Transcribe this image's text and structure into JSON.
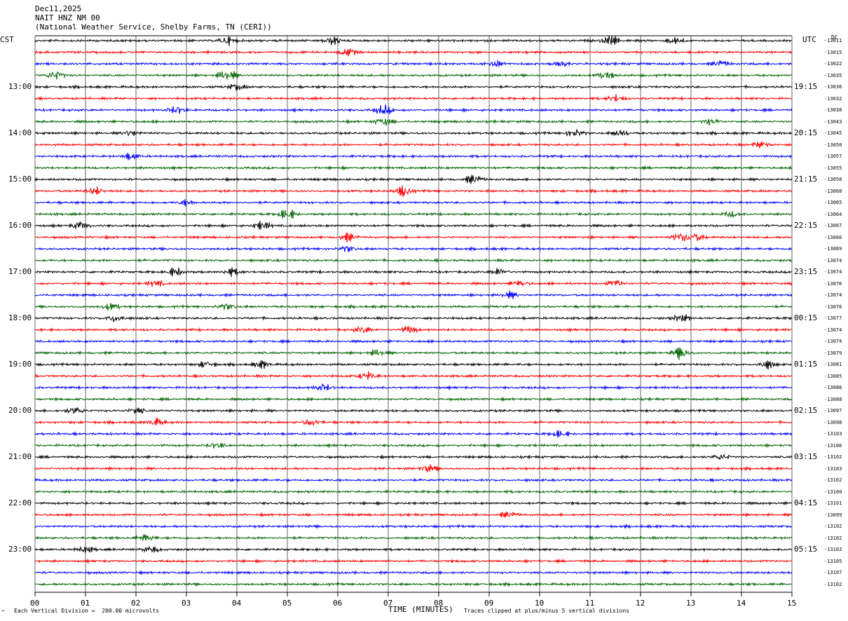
{
  "header": {
    "date": "Dec11,2025",
    "station": "NAIT HNZ NM 00",
    "source": "(National Weather Service, Shelby Farms, TN (CERI))"
  },
  "left_axis_title": "CST",
  "right_axis_title": "UTC",
  "right_column_label": "DC",
  "footer": {
    "marker": "^",
    "scale": "Each Vertical Division =  200.00 microvolts",
    "clip": "Traces clipped at plus/minus 5 vertical divisions"
  },
  "chart_data": {
    "type": "line",
    "title": "",
    "xlabel": "TIME (MINUTES)",
    "ylabel": "",
    "xlim": [
      0,
      15
    ],
    "x_ticks": [
      "00",
      "01",
      "02",
      "03",
      "04",
      "05",
      "06",
      "07",
      "08",
      "09",
      "10",
      "11",
      "12",
      "13",
      "14",
      "15"
    ],
    "grid": "vertical",
    "row_minutes": 15,
    "series_colors": [
      "#000000",
      "#ff0000",
      "#0000ff",
      "#006400"
    ],
    "rows_per_hour": 4,
    "row_count": 48,
    "cst_hour_labels": [
      "13:00",
      "14:00",
      "15:00",
      "16:00",
      "17:00",
      "18:00",
      "19:00",
      "20:00",
      "21:00",
      "22:00",
      "23:00"
    ],
    "utc_hour_labels": [
      "19:15",
      "20:15",
      "21:15",
      "22:15",
      "23:15",
      "00:15",
      "01:15",
      "02:15",
      "03:15",
      "04:15",
      "05:15"
    ],
    "first_labeled_row": 4,
    "row_means": [
      "-13011",
      "-13015",
      "-13022",
      "-13035",
      "-13036",
      "-13032",
      "-13038",
      "-13043",
      "-13045",
      "-13050",
      "-13057",
      "-13055",
      "-13058",
      "-13068",
      "-13065",
      "-13064",
      "-13067",
      "-13066",
      "-13069",
      "-13074",
      "-13074",
      "-13076",
      "-13074",
      "-13076",
      "-13077",
      "-13074",
      "-13074",
      "-13079",
      "-13081",
      "-13085",
      "-13086",
      "-13088",
      "-13097",
      "-13098",
      "-13103",
      "-13106",
      "-13102",
      "-13103",
      "-13102",
      "-13100",
      "-13101",
      "-13099",
      "-13102",
      "-13102",
      "-13103",
      "-13105",
      "-13107",
      "-13102"
    ],
    "events": [
      {
        "row": 0,
        "minute": 3.8,
        "amp": 1.6
      },
      {
        "row": 0,
        "minute": 5.9,
        "amp": 1.8
      },
      {
        "row": 0,
        "minute": 11.4,
        "amp": 1.8
      },
      {
        "row": 0,
        "minute": 12.7,
        "amp": 1.4
      },
      {
        "row": 1,
        "minute": 6.2,
        "amp": 1.5
      },
      {
        "row": 2,
        "minute": 9.1,
        "amp": 1.6
      },
      {
        "row": 2,
        "minute": 10.4,
        "amp": 1.3
      },
      {
        "row": 2,
        "minute": 13.6,
        "amp": 1.3
      },
      {
        "row": 3,
        "minute": 0.4,
        "amp": 2.0
      },
      {
        "row": 3,
        "minute": 3.8,
        "amp": 2.4
      },
      {
        "row": 3,
        "minute": 11.3,
        "amp": 1.4
      },
      {
        "row": 4,
        "minute": 4.0,
        "amp": 1.2
      },
      {
        "row": 5,
        "minute": 11.5,
        "amp": 1.4
      },
      {
        "row": 6,
        "minute": 2.8,
        "amp": 1.6
      },
      {
        "row": 6,
        "minute": 6.9,
        "amp": 2.0
      },
      {
        "row": 7,
        "minute": 6.9,
        "amp": 1.5
      },
      {
        "row": 7,
        "minute": 13.4,
        "amp": 1.2
      },
      {
        "row": 8,
        "minute": 1.9,
        "amp": 1.3
      },
      {
        "row": 8,
        "minute": 10.7,
        "amp": 1.6
      },
      {
        "row": 8,
        "minute": 11.6,
        "amp": 1.3
      },
      {
        "row": 9,
        "minute": 14.4,
        "amp": 1.5
      },
      {
        "row": 10,
        "minute": 1.9,
        "amp": 1.3
      },
      {
        "row": 12,
        "minute": 8.7,
        "amp": 1.8
      },
      {
        "row": 13,
        "minute": 1.2,
        "amp": 1.5
      },
      {
        "row": 13,
        "minute": 7.3,
        "amp": 2.2
      },
      {
        "row": 14,
        "minute": 3.0,
        "amp": 1.2
      },
      {
        "row": 15,
        "minute": 5.0,
        "amp": 2.0
      },
      {
        "row": 15,
        "minute": 13.8,
        "amp": 1.2
      },
      {
        "row": 16,
        "minute": 0.9,
        "amp": 1.6
      },
      {
        "row": 16,
        "minute": 4.5,
        "amp": 1.6
      },
      {
        "row": 17,
        "minute": 6.2,
        "amp": 1.5
      },
      {
        "row": 17,
        "minute": 12.8,
        "amp": 2.0
      },
      {
        "row": 17,
        "minute": 13.1,
        "amp": 1.7
      },
      {
        "row": 18,
        "minute": 6.2,
        "amp": 1.3
      },
      {
        "row": 20,
        "minute": 2.8,
        "amp": 1.8
      },
      {
        "row": 20,
        "minute": 3.9,
        "amp": 1.5
      },
      {
        "row": 20,
        "minute": 9.2,
        "amp": 1.5
      },
      {
        "row": 21,
        "minute": 2.4,
        "amp": 1.3
      },
      {
        "row": 21,
        "minute": 9.6,
        "amp": 1.3
      },
      {
        "row": 21,
        "minute": 11.5,
        "amp": 1.4
      },
      {
        "row": 22,
        "minute": 9.4,
        "amp": 1.2
      },
      {
        "row": 23,
        "minute": 1.5,
        "amp": 1.3
      },
      {
        "row": 23,
        "minute": 3.8,
        "amp": 1.3
      },
      {
        "row": 24,
        "minute": 1.6,
        "amp": 1.6
      },
      {
        "row": 24,
        "minute": 12.8,
        "amp": 1.5
      },
      {
        "row": 25,
        "minute": 7.4,
        "amp": 1.7
      },
      {
        "row": 25,
        "minute": 6.5,
        "amp": 1.3
      },
      {
        "row": 27,
        "minute": 12.8,
        "amp": 2.4
      },
      {
        "row": 27,
        "minute": 6.8,
        "amp": 1.4
      },
      {
        "row": 28,
        "minute": 3.4,
        "amp": 1.4
      },
      {
        "row": 28,
        "minute": 4.5,
        "amp": 1.4
      },
      {
        "row": 28,
        "minute": 14.5,
        "amp": 1.6
      },
      {
        "row": 29,
        "minute": 6.6,
        "amp": 1.5
      },
      {
        "row": 30,
        "minute": 5.7,
        "amp": 1.6
      },
      {
        "row": 32,
        "minute": 0.8,
        "amp": 1.6
      },
      {
        "row": 32,
        "minute": 2.0,
        "amp": 1.4
      },
      {
        "row": 33,
        "minute": 2.4,
        "amp": 1.5
      },
      {
        "row": 33,
        "minute": 5.5,
        "amp": 1.4
      },
      {
        "row": 34,
        "minute": 10.4,
        "amp": 1.2
      },
      {
        "row": 35,
        "minute": 3.6,
        "amp": 1.2
      },
      {
        "row": 36,
        "minute": 13.6,
        "amp": 1.3
      },
      {
        "row": 37,
        "minute": 7.8,
        "amp": 1.3
      },
      {
        "row": 41,
        "minute": 9.4,
        "amp": 1.2
      },
      {
        "row": 43,
        "minute": 2.2,
        "amp": 1.4
      },
      {
        "row": 44,
        "minute": 1.0,
        "amp": 1.2
      },
      {
        "row": 44,
        "minute": 2.3,
        "amp": 1.4
      }
    ]
  }
}
